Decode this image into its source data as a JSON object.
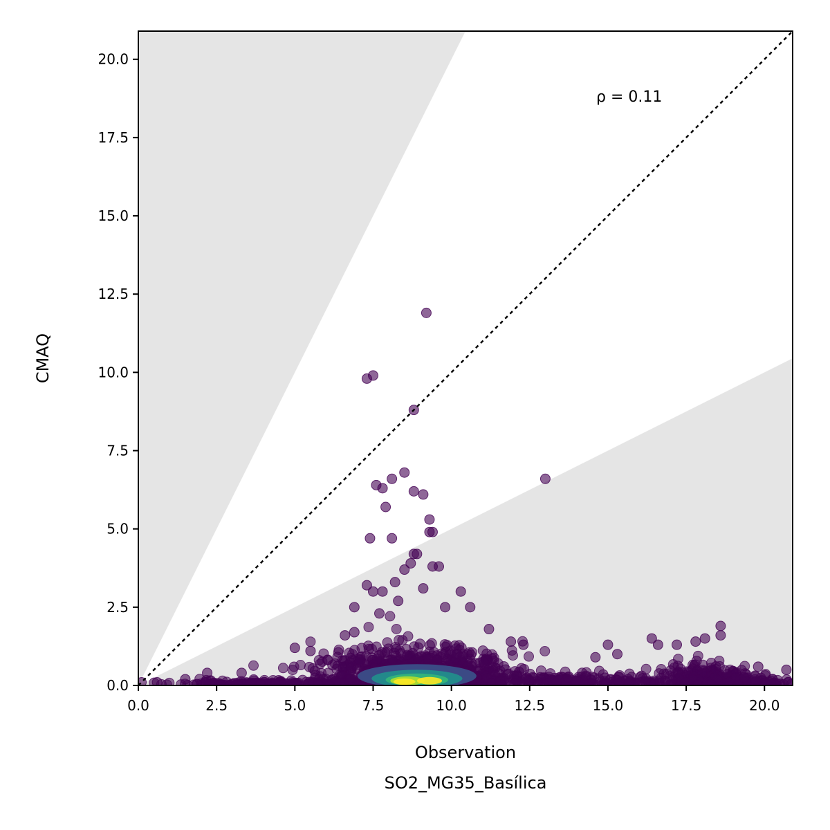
{
  "chart_data": {
    "type": "scatter",
    "xlabel": "Observation",
    "xlabel_sub": "SO2_MG35_Basílica",
    "ylabel": "CMAQ",
    "xlim": [
      0,
      20.9
    ],
    "ylim": [
      0,
      20.9
    ],
    "xticks": [
      "0.0",
      "2.5",
      "5.0",
      "7.5",
      "10.0",
      "12.5",
      "15.0",
      "17.5",
      "20.0"
    ],
    "yticks": [
      "0.0",
      "2.5",
      "5.0",
      "7.5",
      "10.0",
      "12.5",
      "15.0",
      "17.5",
      "20.0"
    ],
    "annotation": "ρ = 0.11",
    "reference_line": "1:1 dotted",
    "shaded_bands": "outside 0.5x – 2x region",
    "grid": false,
    "colormap": "viridis (point density)",
    "outliers": [
      {
        "x": 9.2,
        "y": 11.9
      },
      {
        "x": 7.3,
        "y": 9.8
      },
      {
        "x": 7.5,
        "y": 9.9
      },
      {
        "x": 8.8,
        "y": 8.8
      },
      {
        "x": 13.0,
        "y": 6.6
      },
      {
        "x": 7.6,
        "y": 6.4
      },
      {
        "x": 7.8,
        "y": 6.3
      },
      {
        "x": 8.1,
        "y": 6.6
      },
      {
        "x": 8.5,
        "y": 6.8
      },
      {
        "x": 8.8,
        "y": 6.2
      },
      {
        "x": 9.1,
        "y": 6.1
      },
      {
        "x": 7.9,
        "y": 5.7
      },
      {
        "x": 9.3,
        "y": 5.3
      },
      {
        "x": 9.3,
        "y": 4.9
      },
      {
        "x": 9.4,
        "y": 4.9
      },
      {
        "x": 7.4,
        "y": 4.7
      },
      {
        "x": 8.1,
        "y": 4.7
      },
      {
        "x": 8.8,
        "y": 4.2
      },
      {
        "x": 8.9,
        "y": 4.2
      },
      {
        "x": 8.7,
        "y": 3.9
      },
      {
        "x": 9.6,
        "y": 3.8
      },
      {
        "x": 9.4,
        "y": 3.8
      },
      {
        "x": 8.5,
        "y": 3.7
      },
      {
        "x": 8.2,
        "y": 3.3
      },
      {
        "x": 7.3,
        "y": 3.2
      },
      {
        "x": 7.5,
        "y": 3.0
      },
      {
        "x": 7.8,
        "y": 3.0
      },
      {
        "x": 10.3,
        "y": 3.0
      },
      {
        "x": 9.1,
        "y": 3.1
      },
      {
        "x": 8.3,
        "y": 2.7
      },
      {
        "x": 6.9,
        "y": 2.5
      },
      {
        "x": 7.7,
        "y": 2.3
      },
      {
        "x": 10.6,
        "y": 2.5
      },
      {
        "x": 9.8,
        "y": 2.5
      },
      {
        "x": 6.6,
        "y": 1.6
      },
      {
        "x": 6.9,
        "y": 1.7
      },
      {
        "x": 11.2,
        "y": 1.8
      },
      {
        "x": 5.0,
        "y": 1.2
      },
      {
        "x": 5.5,
        "y": 1.1
      },
      {
        "x": 11.9,
        "y": 1.4
      },
      {
        "x": 12.3,
        "y": 1.3
      },
      {
        "x": 15.0,
        "y": 1.3
      },
      {
        "x": 15.3,
        "y": 1.0
      },
      {
        "x": 16.4,
        "y": 1.5
      },
      {
        "x": 16.6,
        "y": 1.3
      },
      {
        "x": 17.2,
        "y": 1.3
      },
      {
        "x": 17.8,
        "y": 1.4
      },
      {
        "x": 18.1,
        "y": 1.5
      },
      {
        "x": 18.6,
        "y": 1.9
      },
      {
        "x": 18.6,
        "y": 1.6
      },
      {
        "x": 14.6,
        "y": 0.9
      },
      {
        "x": 19.8,
        "y": 0.6
      },
      {
        "x": 20.7,
        "y": 0.5
      },
      {
        "x": 0.1,
        "y": 0.1
      },
      {
        "x": 0.6,
        "y": 0.1
      },
      {
        "x": 1.5,
        "y": 0.2
      },
      {
        "x": 2.2,
        "y": 0.4
      },
      {
        "x": 3.3,
        "y": 0.4
      }
    ],
    "density_clusters": [
      {
        "x": 8.9,
        "y": 0.7,
        "sx": 1.5,
        "sy": 0.55,
        "count": 900
      },
      {
        "x": 18.2,
        "y": 0.35,
        "sx": 0.7,
        "sy": 0.3,
        "count": 200
      },
      {
        "x": 4.5,
        "y": 0.12,
        "sx": 2.0,
        "sy": 0.07,
        "count": 200
      },
      {
        "x": 14.0,
        "y": 0.2,
        "sx": 2.4,
        "sy": 0.18,
        "count": 260
      },
      {
        "x": 19.8,
        "y": 0.15,
        "sx": 0.8,
        "sy": 0.12,
        "count": 60
      }
    ],
    "density_core": [
      {
        "x": 8.9,
        "y": 0.3,
        "rx": 1.9,
        "ry": 0.38,
        "color": "#3b528b"
      },
      {
        "x": 8.9,
        "y": 0.22,
        "rx": 1.45,
        "ry": 0.28,
        "color": "#21908c"
      },
      {
        "x": 8.9,
        "y": 0.18,
        "rx": 1.0,
        "ry": 0.2,
        "color": "#35b779"
      },
      {
        "x": 8.6,
        "y": 0.15,
        "rx": 0.55,
        "ry": 0.14,
        "color": "#b5de2b"
      },
      {
        "x": 9.3,
        "y": 0.15,
        "rx": 0.4,
        "ry": 0.12,
        "color": "#fde725"
      },
      {
        "x": 8.5,
        "y": 0.12,
        "rx": 0.35,
        "ry": 0.1,
        "color": "#fde725"
      }
    ],
    "colors": {
      "points": "#440154",
      "band": "#e5e5e5",
      "reference_line": "#000000"
    }
  }
}
